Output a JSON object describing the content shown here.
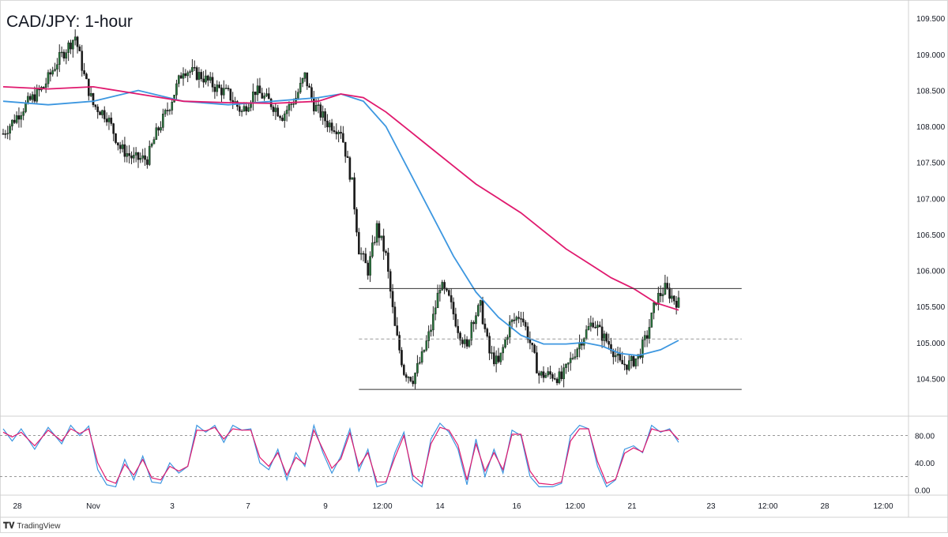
{
  "header": {
    "title": "CAD/JPY: 1-hour"
  },
  "brand": {
    "icon": "tradingview-logo-icon",
    "label": "TradingView"
  },
  "colors": {
    "up": "#26733a",
    "down": "#1b1b1b",
    "ma_fast": "#3d97e0",
    "ma_slow": "#e0196e",
    "stoch_k": "#3d97e0",
    "stoch_d": "#e0196e",
    "level": "#333333",
    "grid": "#e6e6e6"
  },
  "chart_data": [
    {
      "type": "candlestick",
      "title": "CAD/JPY: 1-hour",
      "ylim": [
        104.0,
        109.7
      ],
      "y_ticks": [
        "109.500",
        "109.000",
        "108.500",
        "108.000",
        "107.500",
        "107.000",
        "106.500",
        "106.000",
        "105.500",
        "105.000",
        "104.500"
      ],
      "y_tick_values": [
        109.5,
        109.0,
        108.5,
        108.0,
        107.5,
        107.0,
        106.5,
        106.0,
        105.5,
        105.0,
        104.5
      ],
      "x_ticks": [
        "28",
        "Nov",
        "3",
        "7",
        "9",
        "12:00",
        "14",
        "16",
        "12:00",
        "21",
        "23",
        "12:00",
        "28",
        "12:00"
      ],
      "x_range_note": "",
      "price_path_anchors": [
        [
          0,
          107.9
        ],
        [
          10,
          108.3
        ],
        [
          18,
          108.55
        ],
        [
          24,
          108.9
        ],
        [
          32,
          109.25
        ],
        [
          36,
          108.7
        ],
        [
          40,
          108.3
        ],
        [
          46,
          108.15
        ],
        [
          52,
          107.7
        ],
        [
          58,
          107.55
        ],
        [
          64,
          107.55
        ],
        [
          68,
          107.9
        ],
        [
          74,
          108.3
        ],
        [
          80,
          108.8
        ],
        [
          88,
          108.7
        ],
        [
          94,
          108.55
        ],
        [
          100,
          108.45
        ],
        [
          106,
          108.2
        ],
        [
          112,
          108.5
        ],
        [
          118,
          108.35
        ],
        [
          124,
          108.15
        ],
        [
          130,
          108.4
        ],
        [
          134,
          108.7
        ],
        [
          138,
          108.3
        ],
        [
          144,
          108.05
        ],
        [
          150,
          107.95
        ],
        [
          155,
          107.2
        ],
        [
          158,
          106.3
        ],
        [
          162,
          106.0
        ],
        [
          166,
          106.6
        ],
        [
          170,
          106.2
        ],
        [
          174,
          105.2
        ],
        [
          178,
          104.6
        ],
        [
          182,
          104.5
        ],
        [
          186,
          104.8
        ],
        [
          190,
          105.2
        ],
        [
          194,
          105.8
        ],
        [
          198,
          105.6
        ],
        [
          202,
          105.2
        ],
        [
          206,
          104.9
        ],
        [
          208,
          105.3
        ],
        [
          212,
          105.5
        ],
        [
          216,
          104.85
        ],
        [
          220,
          104.7
        ],
        [
          225,
          105.25
        ],
        [
          230,
          105.4
        ],
        [
          234,
          105.0
        ],
        [
          238,
          104.55
        ],
        [
          244,
          104.55
        ],
        [
          248,
          104.5
        ],
        [
          252,
          104.75
        ],
        [
          256,
          105.0
        ],
        [
          262,
          105.3
        ],
        [
          266,
          105.1
        ],
        [
          270,
          104.95
        ],
        [
          274,
          104.7
        ],
        [
          278,
          104.7
        ],
        [
          282,
          104.8
        ],
        [
          286,
          105.1
        ],
        [
          290,
          105.6
        ],
        [
          294,
          105.75
        ],
        [
          298,
          105.6
        ],
        [
          300,
          105.55
        ]
      ],
      "series": [
        {
          "name": "",
          "kind": "moving-average-fast",
          "points": [
            [
              0,
              108.35
            ],
            [
              20,
              108.3
            ],
            [
              40,
              108.35
            ],
            [
              60,
              108.5
            ],
            [
              80,
              108.35
            ],
            [
              100,
              108.3
            ],
            [
              120,
              108.35
            ],
            [
              140,
              108.4
            ],
            [
              150,
              108.45
            ],
            [
              160,
              108.35
            ],
            [
              170,
              108.0
            ],
            [
              180,
              107.4
            ],
            [
              190,
              106.8
            ],
            [
              200,
              106.2
            ],
            [
              210,
              105.7
            ],
            [
              220,
              105.35
            ],
            [
              230,
              105.1
            ],
            [
              240,
              104.98
            ],
            [
              250,
              104.98
            ],
            [
              258,
              105.0
            ],
            [
              266,
              104.95
            ],
            [
              274,
              104.85
            ],
            [
              282,
              104.82
            ],
            [
              292,
              104.9
            ],
            [
              300,
              105.03
            ]
          ]
        },
        {
          "name": "",
          "kind": "moving-average-slow",
          "points": [
            [
              0,
              108.55
            ],
            [
              20,
              108.52
            ],
            [
              40,
              108.55
            ],
            [
              60,
              108.45
            ],
            [
              80,
              108.35
            ],
            [
              100,
              108.33
            ],
            [
              120,
              108.32
            ],
            [
              140,
              108.35
            ],
            [
              150,
              108.45
            ],
            [
              160,
              108.4
            ],
            [
              170,
              108.2
            ],
            [
              180,
              107.95
            ],
            [
              190,
              107.7
            ],
            [
              200,
              107.45
            ],
            [
              210,
              107.2
            ],
            [
              220,
              107.0
            ],
            [
              230,
              106.8
            ],
            [
              240,
              106.55
            ],
            [
              250,
              106.3
            ],
            [
              260,
              106.1
            ],
            [
              270,
              105.9
            ],
            [
              280,
              105.75
            ],
            [
              290,
              105.55
            ],
            [
              300,
              105.45
            ]
          ]
        }
      ],
      "levels": [
        {
          "kind": "resistance",
          "value": 105.75,
          "x_from": 158,
          "x_to": 328,
          "style": "solid"
        },
        {
          "kind": "midline",
          "value": 105.05,
          "x_from": 158,
          "x_to": 328,
          "style": "dashed"
        },
        {
          "kind": "support",
          "value": 104.35,
          "x_from": 158,
          "x_to": 328,
          "style": "solid"
        }
      ]
    },
    {
      "type": "line",
      "title": "",
      "ylim": [
        -5,
        105
      ],
      "y_ticks": [
        "80.00",
        "40.00",
        "0.00"
      ],
      "y_tick_values": [
        80,
        40,
        0
      ],
      "reference_lines": [
        80,
        20
      ],
      "series": [
        {
          "name": "",
          "kind": "stochastic-k",
          "points": [
            [
              0,
              90
            ],
            [
              4,
              72
            ],
            [
              8,
              90
            ],
            [
              14,
              60
            ],
            [
              20,
              92
            ],
            [
              26,
              68
            ],
            [
              30,
              95
            ],
            [
              34,
              80
            ],
            [
              38,
              94
            ],
            [
              42,
              30
            ],
            [
              46,
              8
            ],
            [
              50,
              5
            ],
            [
              54,
              45
            ],
            [
              58,
              15
            ],
            [
              62,
              50
            ],
            [
              66,
              12
            ],
            [
              70,
              10
            ],
            [
              74,
              40
            ],
            [
              78,
              25
            ],
            [
              82,
              35
            ],
            [
              86,
              95
            ],
            [
              90,
              85
            ],
            [
              94,
              95
            ],
            [
              98,
              70
            ],
            [
              102,
              95
            ],
            [
              106,
              88
            ],
            [
              110,
              90
            ],
            [
              114,
              40
            ],
            [
              118,
              30
            ],
            [
              122,
              60
            ],
            [
              126,
              15
            ],
            [
              130,
              55
            ],
            [
              134,
              35
            ],
            [
              138,
              95
            ],
            [
              142,
              55
            ],
            [
              146,
              25
            ],
            [
              150,
              50
            ],
            [
              154,
              90
            ],
            [
              158,
              28
            ],
            [
              162,
              60
            ],
            [
              166,
              5
            ],
            [
              170,
              10
            ],
            [
              174,
              55
            ],
            [
              178,
              85
            ],
            [
              182,
              15
            ],
            [
              186,
              5
            ],
            [
              190,
              75
            ],
            [
              194,
              98
            ],
            [
              198,
              85
            ],
            [
              202,
              60
            ],
            [
              206,
              8
            ],
            [
              210,
              75
            ],
            [
              214,
              20
            ],
            [
              218,
              60
            ],
            [
              222,
              25
            ],
            [
              226,
              88
            ],
            [
              230,
              80
            ],
            [
              234,
              20
            ],
            [
              238,
              5
            ],
            [
              244,
              5
            ],
            [
              248,
              10
            ],
            [
              252,
              80
            ],
            [
              256,
              95
            ],
            [
              260,
              90
            ],
            [
              264,
              35
            ],
            [
              268,
              5
            ],
            [
              272,
              15
            ],
            [
              276,
              60
            ],
            [
              280,
              65
            ],
            [
              284,
              55
            ],
            [
              288,
              95
            ],
            [
              292,
              85
            ],
            [
              296,
              90
            ],
            [
              300,
              70
            ]
          ]
        },
        {
          "name": "",
          "kind": "stochastic-d",
          "points": [
            [
              0,
              85
            ],
            [
              4,
              78
            ],
            [
              8,
              85
            ],
            [
              14,
              65
            ],
            [
              20,
              88
            ],
            [
              26,
              72
            ],
            [
              30,
              90
            ],
            [
              34,
              83
            ],
            [
              38,
              90
            ],
            [
              42,
              40
            ],
            [
              46,
              15
            ],
            [
              50,
              10
            ],
            [
              54,
              38
            ],
            [
              58,
              22
            ],
            [
              62,
              45
            ],
            [
              66,
              18
            ],
            [
              70,
              15
            ],
            [
              74,
              35
            ],
            [
              78,
              28
            ],
            [
              82,
              35
            ],
            [
              86,
              88
            ],
            [
              90,
              87
            ],
            [
              94,
              92
            ],
            [
              98,
              75
            ],
            [
              102,
              90
            ],
            [
              106,
              88
            ],
            [
              110,
              88
            ],
            [
              114,
              48
            ],
            [
              118,
              35
            ],
            [
              122,
              55
            ],
            [
              126,
              22
            ],
            [
              130,
              48
            ],
            [
              134,
              38
            ],
            [
              138,
              88
            ],
            [
              142,
              60
            ],
            [
              146,
              32
            ],
            [
              150,
              46
            ],
            [
              154,
              84
            ],
            [
              158,
              35
            ],
            [
              162,
              55
            ],
            [
              166,
              12
            ],
            [
              170,
              12
            ],
            [
              174,
              48
            ],
            [
              178,
              80
            ],
            [
              182,
              22
            ],
            [
              186,
              10
            ],
            [
              190,
              68
            ],
            [
              194,
              92
            ],
            [
              198,
              88
            ],
            [
              202,
              66
            ],
            [
              206,
              15
            ],
            [
              210,
              68
            ],
            [
              214,
              28
            ],
            [
              218,
              55
            ],
            [
              222,
              30
            ],
            [
              226,
              82
            ],
            [
              230,
              82
            ],
            [
              234,
              28
            ],
            [
              238,
              10
            ],
            [
              244,
              8
            ],
            [
              248,
              12
            ],
            [
              252,
              72
            ],
            [
              256,
              90
            ],
            [
              260,
              90
            ],
            [
              264,
              42
            ],
            [
              268,
              10
            ],
            [
              272,
              16
            ],
            [
              276,
              54
            ],
            [
              280,
              62
            ],
            [
              284,
              56
            ],
            [
              288,
              90
            ],
            [
              292,
              86
            ],
            [
              296,
              88
            ],
            [
              300,
              74
            ]
          ]
        }
      ]
    }
  ]
}
